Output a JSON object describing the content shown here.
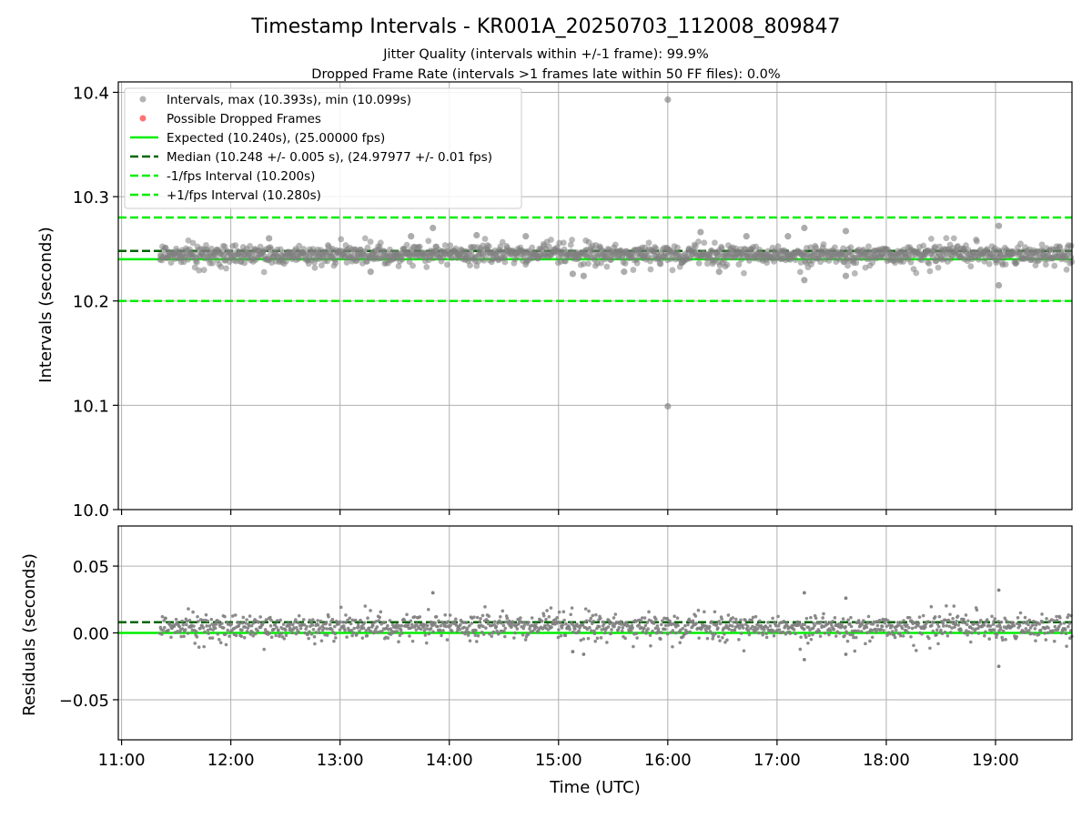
{
  "title": "Timestamp Intervals - KR001A_20250703_112008_809847",
  "subtitle_1": "Jitter Quality (intervals within +/-1 frame): 99.9%",
  "subtitle_2": "Dropped Frame Rate (intervals >1 frames late within 50 FF files): 0.0%",
  "colors": {
    "points": "#808080",
    "expected": "#00ee00",
    "median": "#006400",
    "fps_bounds": "#00ee00",
    "dropped": "#ff0000",
    "grid": "#b0b0b0"
  },
  "chart_data": [
    {
      "type": "scatter",
      "name": "intervals",
      "ylabel": "Intervals (seconds)",
      "xlim": [
        10.97,
        19.7
      ],
      "ylim": [
        10.0,
        10.41
      ],
      "yticks": [
        10.0,
        10.1,
        10.2,
        10.3,
        10.4
      ],
      "ytick_labels": [
        "10.0",
        "10.1",
        "10.2",
        "10.3",
        "10.4"
      ],
      "grid": true,
      "legend_position": "upper-left",
      "legend": [
        "Intervals, max (10.393s), min (10.099s)",
        "Possible Dropped Frames",
        "Expected (10.240s), (25.00000 fps)",
        "Median (10.248 +/- 0.005 s), (24.97977 +/- 0.01 fps)",
        "-1/fps Interval (10.200s)",
        "+1/fps Interval (10.280s)"
      ],
      "lines": {
        "expected": 10.24,
        "median": 10.248,
        "minus_fps": 10.2,
        "plus_fps": 10.28
      },
      "data_range_x": [
        11.35,
        19.7
      ],
      "typical_spread": [
        10.232,
        10.258
      ],
      "outliers": [
        {
          "x": 16.0,
          "y": 10.393
        },
        {
          "x": 16.0,
          "y": 10.099
        },
        {
          "x": 19.03,
          "y": 10.272
        },
        {
          "x": 19.03,
          "y": 10.215
        },
        {
          "x": 17.25,
          "y": 10.27
        },
        {
          "x": 17.25,
          "y": 10.22
        },
        {
          "x": 17.63,
          "y": 10.267
        },
        {
          "x": 17.63,
          "y": 10.224
        },
        {
          "x": 13.85,
          "y": 10.27
        },
        {
          "x": 13.28,
          "y": 10.228
        },
        {
          "x": 15.13,
          "y": 10.226
        },
        {
          "x": 15.23,
          "y": 10.224
        },
        {
          "x": 15.6,
          "y": 10.228
        },
        {
          "x": 16.47,
          "y": 10.228
        },
        {
          "x": 16.3,
          "y": 10.266
        },
        {
          "x": 16.72,
          "y": 10.262
        },
        {
          "x": 17.1,
          "y": 10.262
        },
        {
          "x": 14.7,
          "y": 10.262
        },
        {
          "x": 14.25,
          "y": 10.263
        },
        {
          "x": 12.35,
          "y": 10.26
        },
        {
          "x": 13.65,
          "y": 10.262
        }
      ]
    },
    {
      "type": "scatter",
      "name": "residuals",
      "ylabel": "Residuals (seconds)",
      "xlabel": "Time (UTC)",
      "xlim": [
        10.97,
        19.7
      ],
      "ylim": [
        -0.08,
        0.08
      ],
      "yticks": [
        -0.05,
        0.0,
        0.05
      ],
      "ytick_labels": [
        "−0.05",
        "0.00",
        "0.05"
      ],
      "xticks": [
        11,
        12,
        13,
        14,
        15,
        16,
        17,
        18,
        19
      ],
      "xtick_labels": [
        "11:00",
        "12:00",
        "13:00",
        "14:00",
        "15:00",
        "16:00",
        "17:00",
        "18:00",
        "19:00"
      ],
      "grid": true,
      "lines": {
        "zero": 0.0,
        "median_offset": 0.008
      },
      "data_range_x": [
        11.35,
        19.7
      ],
      "outliers": [
        {
          "x": 19.03,
          "y": 0.032
        },
        {
          "x": 19.03,
          "y": -0.025
        },
        {
          "x": 17.25,
          "y": 0.03
        },
        {
          "x": 17.25,
          "y": -0.02
        },
        {
          "x": 17.63,
          "y": 0.026
        },
        {
          "x": 17.63,
          "y": -0.016
        },
        {
          "x": 13.85,
          "y": 0.03
        },
        {
          "x": 15.13,
          "y": -0.014
        },
        {
          "x": 15.23,
          "y": -0.016
        }
      ]
    }
  ]
}
